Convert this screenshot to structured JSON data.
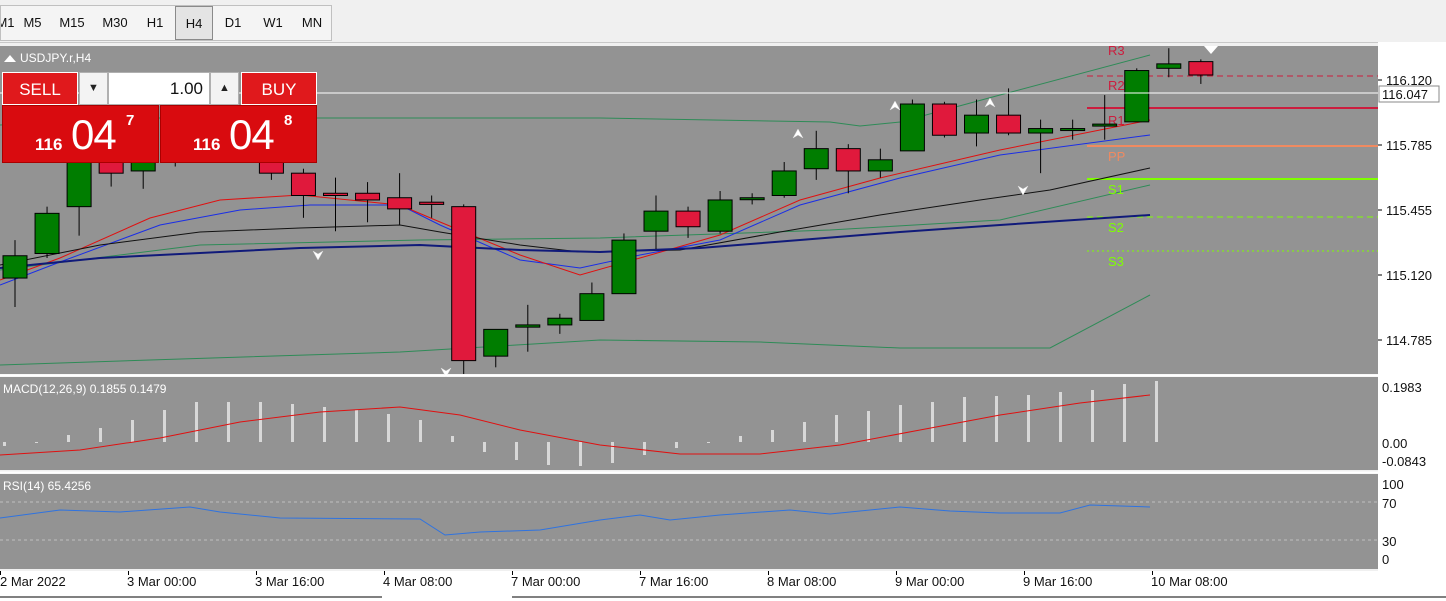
{
  "toolbar": {
    "timeframes": [
      {
        "label": "M1",
        "active": false
      },
      {
        "label": "M5",
        "active": false
      },
      {
        "label": "M15",
        "active": false
      },
      {
        "label": "M30",
        "active": false
      },
      {
        "label": "H1",
        "active": false
      },
      {
        "label": "H4",
        "active": true
      },
      {
        "label": "D1",
        "active": false
      },
      {
        "label": "W1",
        "active": false
      },
      {
        "label": "MN",
        "active": false
      }
    ]
  },
  "chart": {
    "symbol_label": "USDJPY.r,H4",
    "bg_color": "#939393",
    "bull_color": "#007d00",
    "bear_color": "#e0193c"
  },
  "trade_panel": {
    "sell_label": "SELL",
    "buy_label": "BUY",
    "lot_value": "1.00",
    "bid": {
      "small": "116",
      "big": "04",
      "sup": "7"
    },
    "ask": {
      "small": "116",
      "big": "04",
      "sup": "8"
    }
  },
  "price_axis": {
    "labels": [
      "116.120",
      "115.785",
      "115.455",
      "115.120",
      "114.785"
    ],
    "current_price": "116.047"
  },
  "pivots": [
    {
      "name": "R3",
      "color": "#cc1d3e"
    },
    {
      "name": "R2",
      "color": "#cc1d3e"
    },
    {
      "name": "R1",
      "color": "#cc1d3e"
    },
    {
      "name": "PP",
      "color": "#f08a60"
    },
    {
      "name": "S1",
      "color": "#7fff00"
    },
    {
      "name": "S2",
      "color": "#7fff00"
    },
    {
      "name": "S3",
      "color": "#7fff00"
    }
  ],
  "macd": {
    "label": "MACD(12,26,9) 0.1855 0.1479",
    "axis_labels": [
      "0.1983",
      "0.00",
      "-0.0843"
    ]
  },
  "rsi": {
    "label": "RSI(14) 65.4256",
    "axis_labels": [
      "100",
      "70",
      "30",
      "0"
    ]
  },
  "time_axis": {
    "labels": [
      "2 Mar 2022",
      "3 Mar 00:00",
      "3 Mar 16:00",
      "4 Mar 08:00",
      "7 Mar 00:00",
      "7 Mar 16:00",
      "8 Mar 08:00",
      "9 Mar 00:00",
      "9 Mar 16:00",
      "10 Mar 08:00"
    ]
  },
  "chart_data": {
    "type": "candlestick",
    "symbol": "USDJPY",
    "timeframe": "H4",
    "candles": [
      {
        "o": 115.13,
        "h": 115.3,
        "l": 115.0,
        "c": 115.23
      },
      {
        "o": 115.24,
        "h": 115.45,
        "l": 115.22,
        "c": 115.42
      },
      {
        "o": 115.45,
        "h": 115.75,
        "l": 115.32,
        "c": 115.65
      },
      {
        "o": 115.66,
        "h": 115.67,
        "l": 115.54,
        "c": 115.6
      },
      {
        "o": 115.61,
        "h": 115.74,
        "l": 115.53,
        "c": 115.66
      },
      {
        "o": 115.67,
        "h": 115.75,
        "l": 115.63,
        "c": 115.72
      },
      {
        "o": 115.73,
        "h": 115.82,
        "l": 115.71,
        "c": 115.76
      },
      {
        "o": 115.76,
        "h": 115.82,
        "l": 115.7,
        "c": 115.73
      },
      {
        "o": 115.73,
        "h": 115.78,
        "l": 115.57,
        "c": 115.6
      },
      {
        "o": 115.6,
        "h": 115.62,
        "l": 115.4,
        "c": 115.5
      },
      {
        "o": 115.51,
        "h": 115.58,
        "l": 115.34,
        "c": 115.5
      },
      {
        "o": 115.51,
        "h": 115.56,
        "l": 115.38,
        "c": 115.48
      },
      {
        "o": 115.49,
        "h": 115.6,
        "l": 115.37,
        "c": 115.44
      },
      {
        "o": 115.47,
        "h": 115.5,
        "l": 115.4,
        "c": 115.46
      },
      {
        "o": 115.45,
        "h": 115.46,
        "l": 114.7,
        "c": 114.76
      },
      {
        "o": 114.78,
        "h": 114.9,
        "l": 114.73,
        "c": 114.9
      },
      {
        "o": 114.91,
        "h": 115.01,
        "l": 114.8,
        "c": 114.92
      },
      {
        "o": 114.92,
        "h": 114.97,
        "l": 114.88,
        "c": 114.95
      },
      {
        "o": 114.94,
        "h": 115.11,
        "l": 114.94,
        "c": 115.06
      },
      {
        "o": 115.06,
        "h": 115.33,
        "l": 115.06,
        "c": 115.3
      },
      {
        "o": 115.34,
        "h": 115.5,
        "l": 115.26,
        "c": 115.43
      },
      {
        "o": 115.43,
        "h": 115.45,
        "l": 115.31,
        "c": 115.36
      },
      {
        "o": 115.34,
        "h": 115.52,
        "l": 115.33,
        "c": 115.48
      },
      {
        "o": 115.49,
        "h": 115.51,
        "l": 115.46,
        "c": 115.49
      },
      {
        "o": 115.5,
        "h": 115.65,
        "l": 115.49,
        "c": 115.61
      },
      {
        "o": 115.62,
        "h": 115.79,
        "l": 115.57,
        "c": 115.71
      },
      {
        "o": 115.71,
        "h": 115.73,
        "l": 115.51,
        "c": 115.61
      },
      {
        "o": 115.61,
        "h": 115.71,
        "l": 115.58,
        "c": 115.66
      },
      {
        "o": 115.7,
        "h": 115.93,
        "l": 115.7,
        "c": 115.91
      },
      {
        "o": 115.91,
        "h": 115.92,
        "l": 115.76,
        "c": 115.77
      },
      {
        "o": 115.78,
        "h": 115.93,
        "l": 115.72,
        "c": 115.86
      },
      {
        "o": 115.86,
        "h": 115.98,
        "l": 115.77,
        "c": 115.78
      },
      {
        "o": 115.78,
        "h": 115.84,
        "l": 115.6,
        "c": 115.8
      },
      {
        "o": 115.8,
        "h": 115.84,
        "l": 115.75,
        "c": 115.8
      },
      {
        "o": 115.82,
        "h": 115.95,
        "l": 115.75,
        "c": 115.82
      },
      {
        "o": 115.83,
        "h": 116.07,
        "l": 115.83,
        "c": 116.06
      },
      {
        "o": 116.07,
        "h": 116.16,
        "l": 116.03,
        "c": 116.09
      },
      {
        "o": 116.1,
        "h": 116.11,
        "l": 116.0,
        "c": 116.04
      }
    ],
    "indicators": {
      "macd": {
        "params": "12,26,9",
        "main": 0.1855,
        "signal": 0.1479
      },
      "rsi": {
        "period": 14,
        "value": 65.4256,
        "levels": [
          70,
          30
        ]
      }
    },
    "pivot_levels": {
      "R2": 116.1,
      "R1": 116.0,
      "PP": 115.785,
      "S1": 115.65,
      "S2": 115.45,
      "S3": 115.26
    }
  }
}
